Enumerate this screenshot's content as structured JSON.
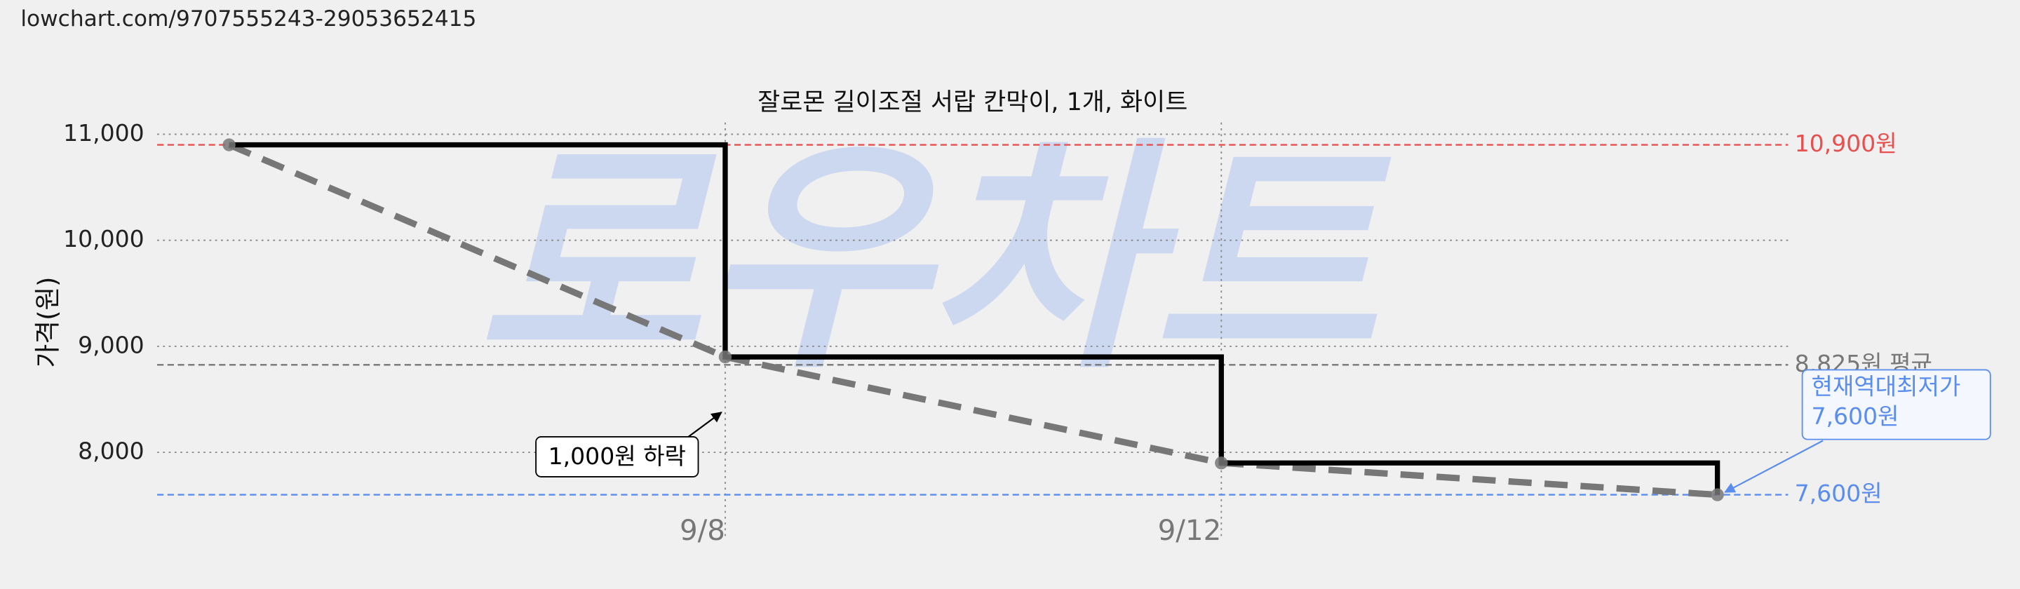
{
  "url": "lowchart.com/9707555243-29053652415",
  "chart_data": {
    "type": "step",
    "title": "잘로몬 길이조절 서랍 칸막이, 1개, 화이트",
    "y_label": "가격(원)",
    "watermark": "로우차트",
    "x": [
      4,
      8,
      12,
      16
    ],
    "values": [
      10900,
      8900,
      7900,
      7600
    ],
    "line_color": "#000000",
    "trend_color": "#777777",
    "xlim": [
      3.42,
      16.57
    ],
    "xticks": [
      {
        "value": 8,
        "label": "9/8"
      },
      {
        "value": 12,
        "label": "9/12"
      }
    ],
    "ylim": [
      7430,
      11110
    ],
    "yticks": [
      {
        "value": 8000,
        "label": "8,000"
      },
      {
        "value": 9000,
        "label": "9,000"
      },
      {
        "value": 10000,
        "label": "10,000"
      },
      {
        "value": 11000,
        "label": "11,000"
      }
    ],
    "grid": true,
    "ref_lines": [
      {
        "value": 10900,
        "label": "10,900원",
        "color": "#e85050"
      },
      {
        "value": 8825,
        "label": "8,825원 평균",
        "color": "#777777"
      },
      {
        "value": 7600,
        "label": "7,600원",
        "color": "#5b8def"
      }
    ],
    "annotations": [
      {
        "text": "1,000원 하락"
      },
      {
        "lines": [
          "현재역대최저가",
          "7,600원"
        ]
      }
    ]
  }
}
